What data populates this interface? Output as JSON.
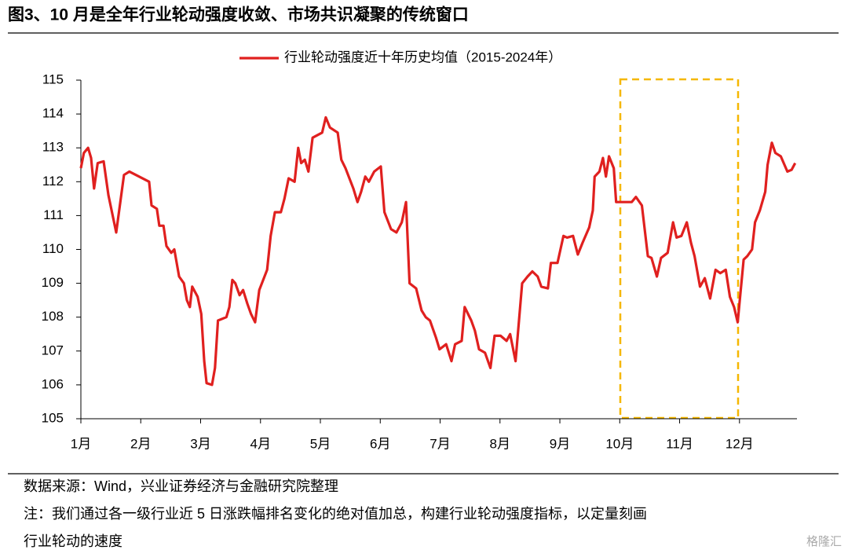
{
  "header": {
    "title": "图3、10 月是全年行业轮动强度收敛、市场共识凝聚的传统窗口"
  },
  "chart_data": {
    "type": "line",
    "x": [
      1.0,
      1.05,
      1.12,
      1.17,
      1.22,
      1.28,
      1.38,
      1.46,
      1.59,
      1.72,
      1.81,
      2.14,
      2.18,
      2.27,
      2.31,
      2.38,
      2.43,
      2.51,
      2.56,
      2.64,
      2.72,
      2.77,
      2.82,
      2.86,
      2.95,
      3.01,
      3.06,
      3.1,
      3.19,
      3.24,
      3.29,
      3.43,
      3.48,
      3.53,
      3.58,
      3.65,
      3.71,
      3.78,
      3.84,
      3.91,
      3.98,
      4.11,
      4.17,
      4.24,
      4.34,
      4.4,
      4.47,
      4.57,
      4.63,
      4.68,
      4.74,
      4.8,
      4.87,
      5.03,
      5.09,
      5.16,
      5.29,
      5.35,
      5.42,
      5.55,
      5.62,
      5.68,
      5.75,
      5.81,
      5.9,
      6.01,
      6.07,
      6.18,
      6.27,
      6.36,
      6.43,
      6.49,
      6.6,
      6.69,
      6.76,
      6.83,
      6.93,
      6.99,
      7.1,
      7.19,
      7.25,
      7.36,
      7.41,
      7.52,
      7.58,
      7.65,
      7.75,
      7.84,
      7.91,
      8.01,
      8.11,
      8.17,
      8.26,
      8.37,
      8.46,
      8.54,
      8.63,
      8.69,
      8.8,
      8.85,
      8.96,
      9.06,
      9.12,
      9.22,
      9.3,
      9.38,
      9.49,
      9.55,
      9.58,
      9.66,
      9.72,
      9.77,
      9.82,
      9.9,
      9.94,
      10.2,
      10.27,
      10.37,
      10.47,
      10.53,
      10.62,
      10.69,
      10.8,
      10.89,
      10.95,
      11.03,
      11.12,
      11.19,
      11.25,
      11.34,
      11.42,
      11.51,
      11.6,
      11.68,
      11.77,
      11.84,
      11.91,
      11.97,
      12.07,
      12.13,
      12.21,
      12.26,
      12.34,
      12.43,
      12.47,
      12.54,
      12.6,
      12.69,
      12.8,
      12.87,
      12.93
    ],
    "series": [
      {
        "name": "行业轮动强度近十年历史均值（2015-2024年）",
        "color": "#e0201f",
        "values": [
          112.4,
          112.85,
          113.0,
          112.7,
          111.8,
          112.55,
          112.6,
          111.6,
          110.5,
          112.2,
          112.3,
          112.0,
          111.3,
          111.2,
          110.7,
          110.7,
          110.1,
          109.9,
          110.0,
          109.2,
          109.0,
          108.5,
          108.3,
          108.9,
          108.6,
          108.1,
          106.7,
          106.05,
          106.0,
          106.5,
          107.9,
          108.0,
          108.3,
          109.1,
          109.0,
          108.65,
          108.8,
          108.4,
          108.1,
          107.85,
          108.8,
          109.4,
          110.4,
          111.1,
          111.1,
          111.5,
          112.1,
          112.0,
          113.0,
          112.55,
          112.65,
          112.3,
          113.3,
          113.45,
          113.9,
          113.6,
          113.45,
          112.65,
          112.4,
          111.8,
          111.4,
          111.7,
          112.15,
          112.0,
          112.3,
          112.45,
          111.1,
          110.6,
          110.5,
          110.8,
          111.4,
          109.0,
          108.85,
          108.2,
          108.0,
          107.9,
          107.4,
          107.05,
          107.2,
          106.7,
          107.2,
          107.3,
          108.3,
          107.9,
          107.6,
          107.05,
          106.95,
          106.5,
          107.45,
          107.45,
          107.3,
          107.5,
          106.7,
          109.0,
          109.2,
          109.35,
          109.2,
          108.9,
          108.85,
          109.6,
          109.6,
          110.4,
          110.35,
          110.4,
          109.85,
          110.2,
          110.65,
          111.15,
          112.15,
          112.3,
          112.7,
          112.15,
          112.75,
          112.4,
          111.4,
          111.4,
          111.55,
          111.3,
          109.8,
          109.75,
          109.2,
          109.75,
          109.9,
          110.8,
          110.35,
          110.4,
          110.8,
          110.2,
          109.8,
          108.9,
          109.15,
          108.55,
          109.4,
          109.3,
          109.4,
          108.6,
          108.3,
          107.85,
          109.7,
          109.8,
          110.0,
          110.8,
          111.15,
          111.7,
          112.5,
          113.15,
          112.85,
          112.75,
          112.3,
          112.35,
          112.55
        ]
      }
    ],
    "xlim": [
      1,
      12.96
    ],
    "xticks": [
      {
        "value": 1,
        "label": "1月"
      },
      {
        "value": 2,
        "label": "2月"
      },
      {
        "value": 3,
        "label": "3月"
      },
      {
        "value": 4,
        "label": "4月"
      },
      {
        "value": 5,
        "label": "5月"
      },
      {
        "value": 6,
        "label": "6月"
      },
      {
        "value": 7,
        "label": "7月"
      },
      {
        "value": 8,
        "label": "8月"
      },
      {
        "value": 9,
        "label": "9月"
      },
      {
        "value": 10,
        "label": "10月"
      },
      {
        "value": 11,
        "label": "11月"
      },
      {
        "value": 12,
        "label": "12月"
      }
    ],
    "ylim": [
      105,
      115
    ],
    "yticks": [
      105,
      106,
      107,
      108,
      109,
      110,
      111,
      112,
      113,
      114,
      115
    ],
    "grid": false
  },
  "footer": {
    "source": "数据来源：Wind，兴业证券经济与金融研究院整理",
    "note": "注：我们通过各一级行业近 5 日涨跌幅排名变化的绝对值加总，构建行业轮动强度指标，以定量刻画",
    "note_cont": "行业轮动的速度",
    "watermark": "格隆汇"
  }
}
